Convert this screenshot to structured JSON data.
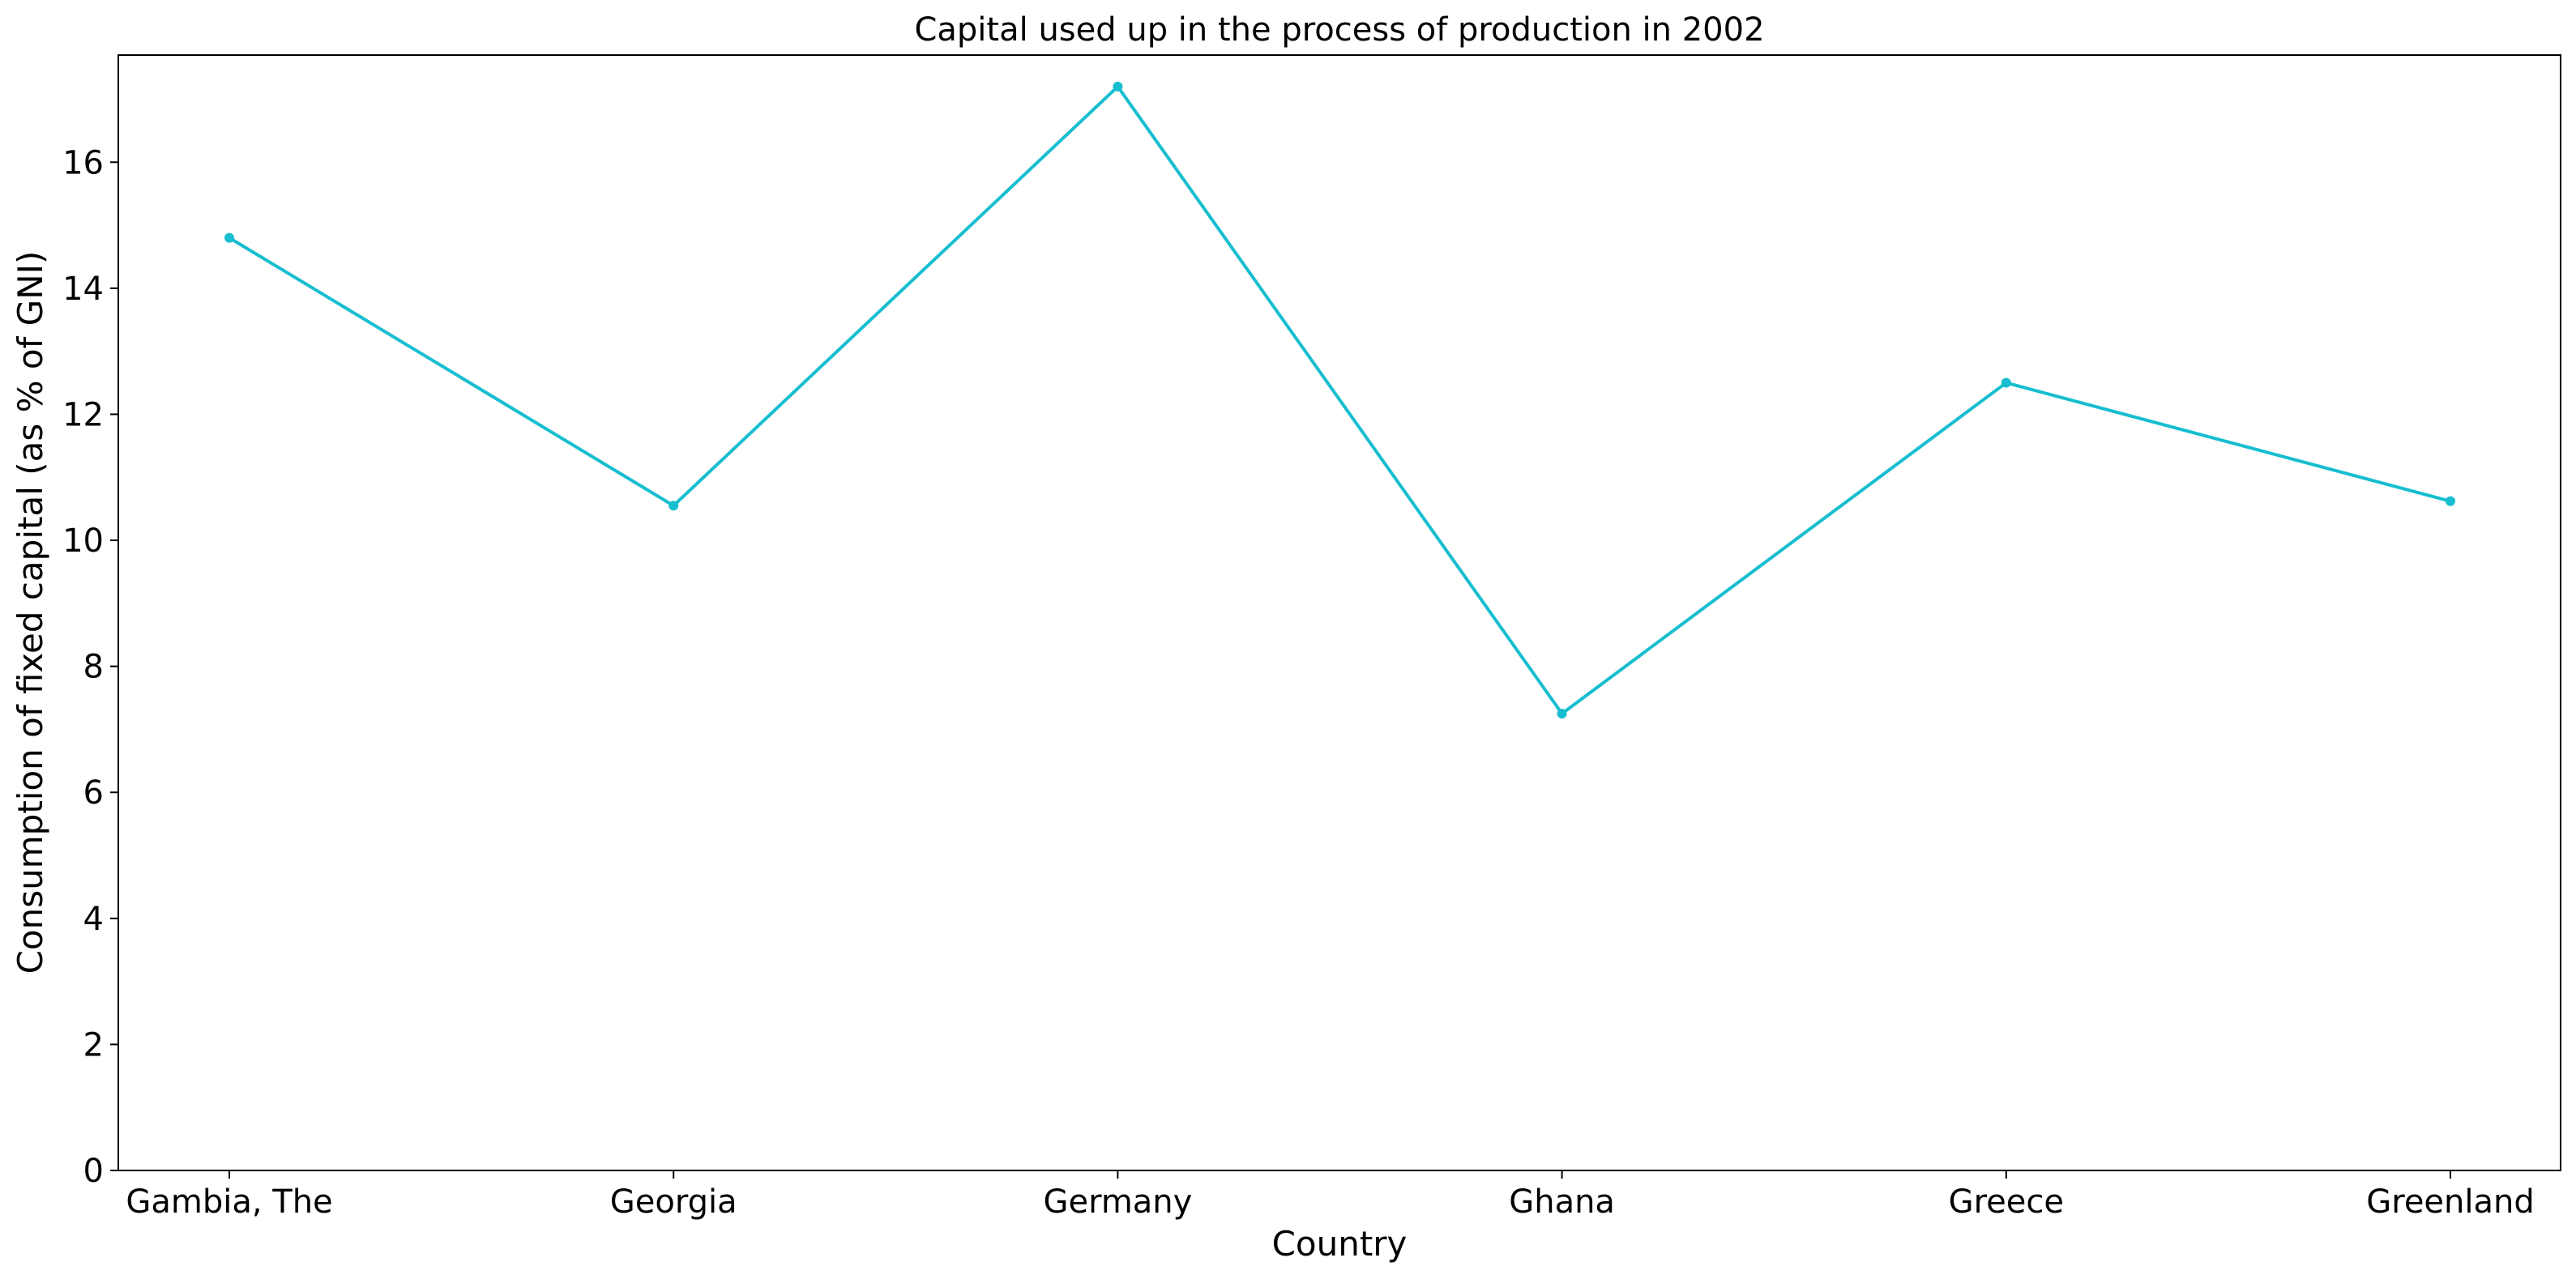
{
  "chart_data": {
    "type": "line",
    "title": "Capital used up in the process of production in 2002",
    "xlabel": "Country",
    "ylabel": "Consumption of fixed capital (as % of GNI)",
    "categories": [
      "Gambia, The",
      "Georgia",
      "Germany",
      "Ghana",
      "Greece",
      "Greenland"
    ],
    "series": [
      {
        "values": [
          14.8,
          10.55,
          17.2,
          7.25,
          12.5,
          10.62
        ],
        "color": "#17becf"
      }
    ],
    "ylim": [
      0,
      17.7
    ],
    "yticks": [
      0,
      2,
      4,
      6,
      8,
      10,
      12,
      14,
      16
    ],
    "grid": false,
    "legend": "none"
  }
}
